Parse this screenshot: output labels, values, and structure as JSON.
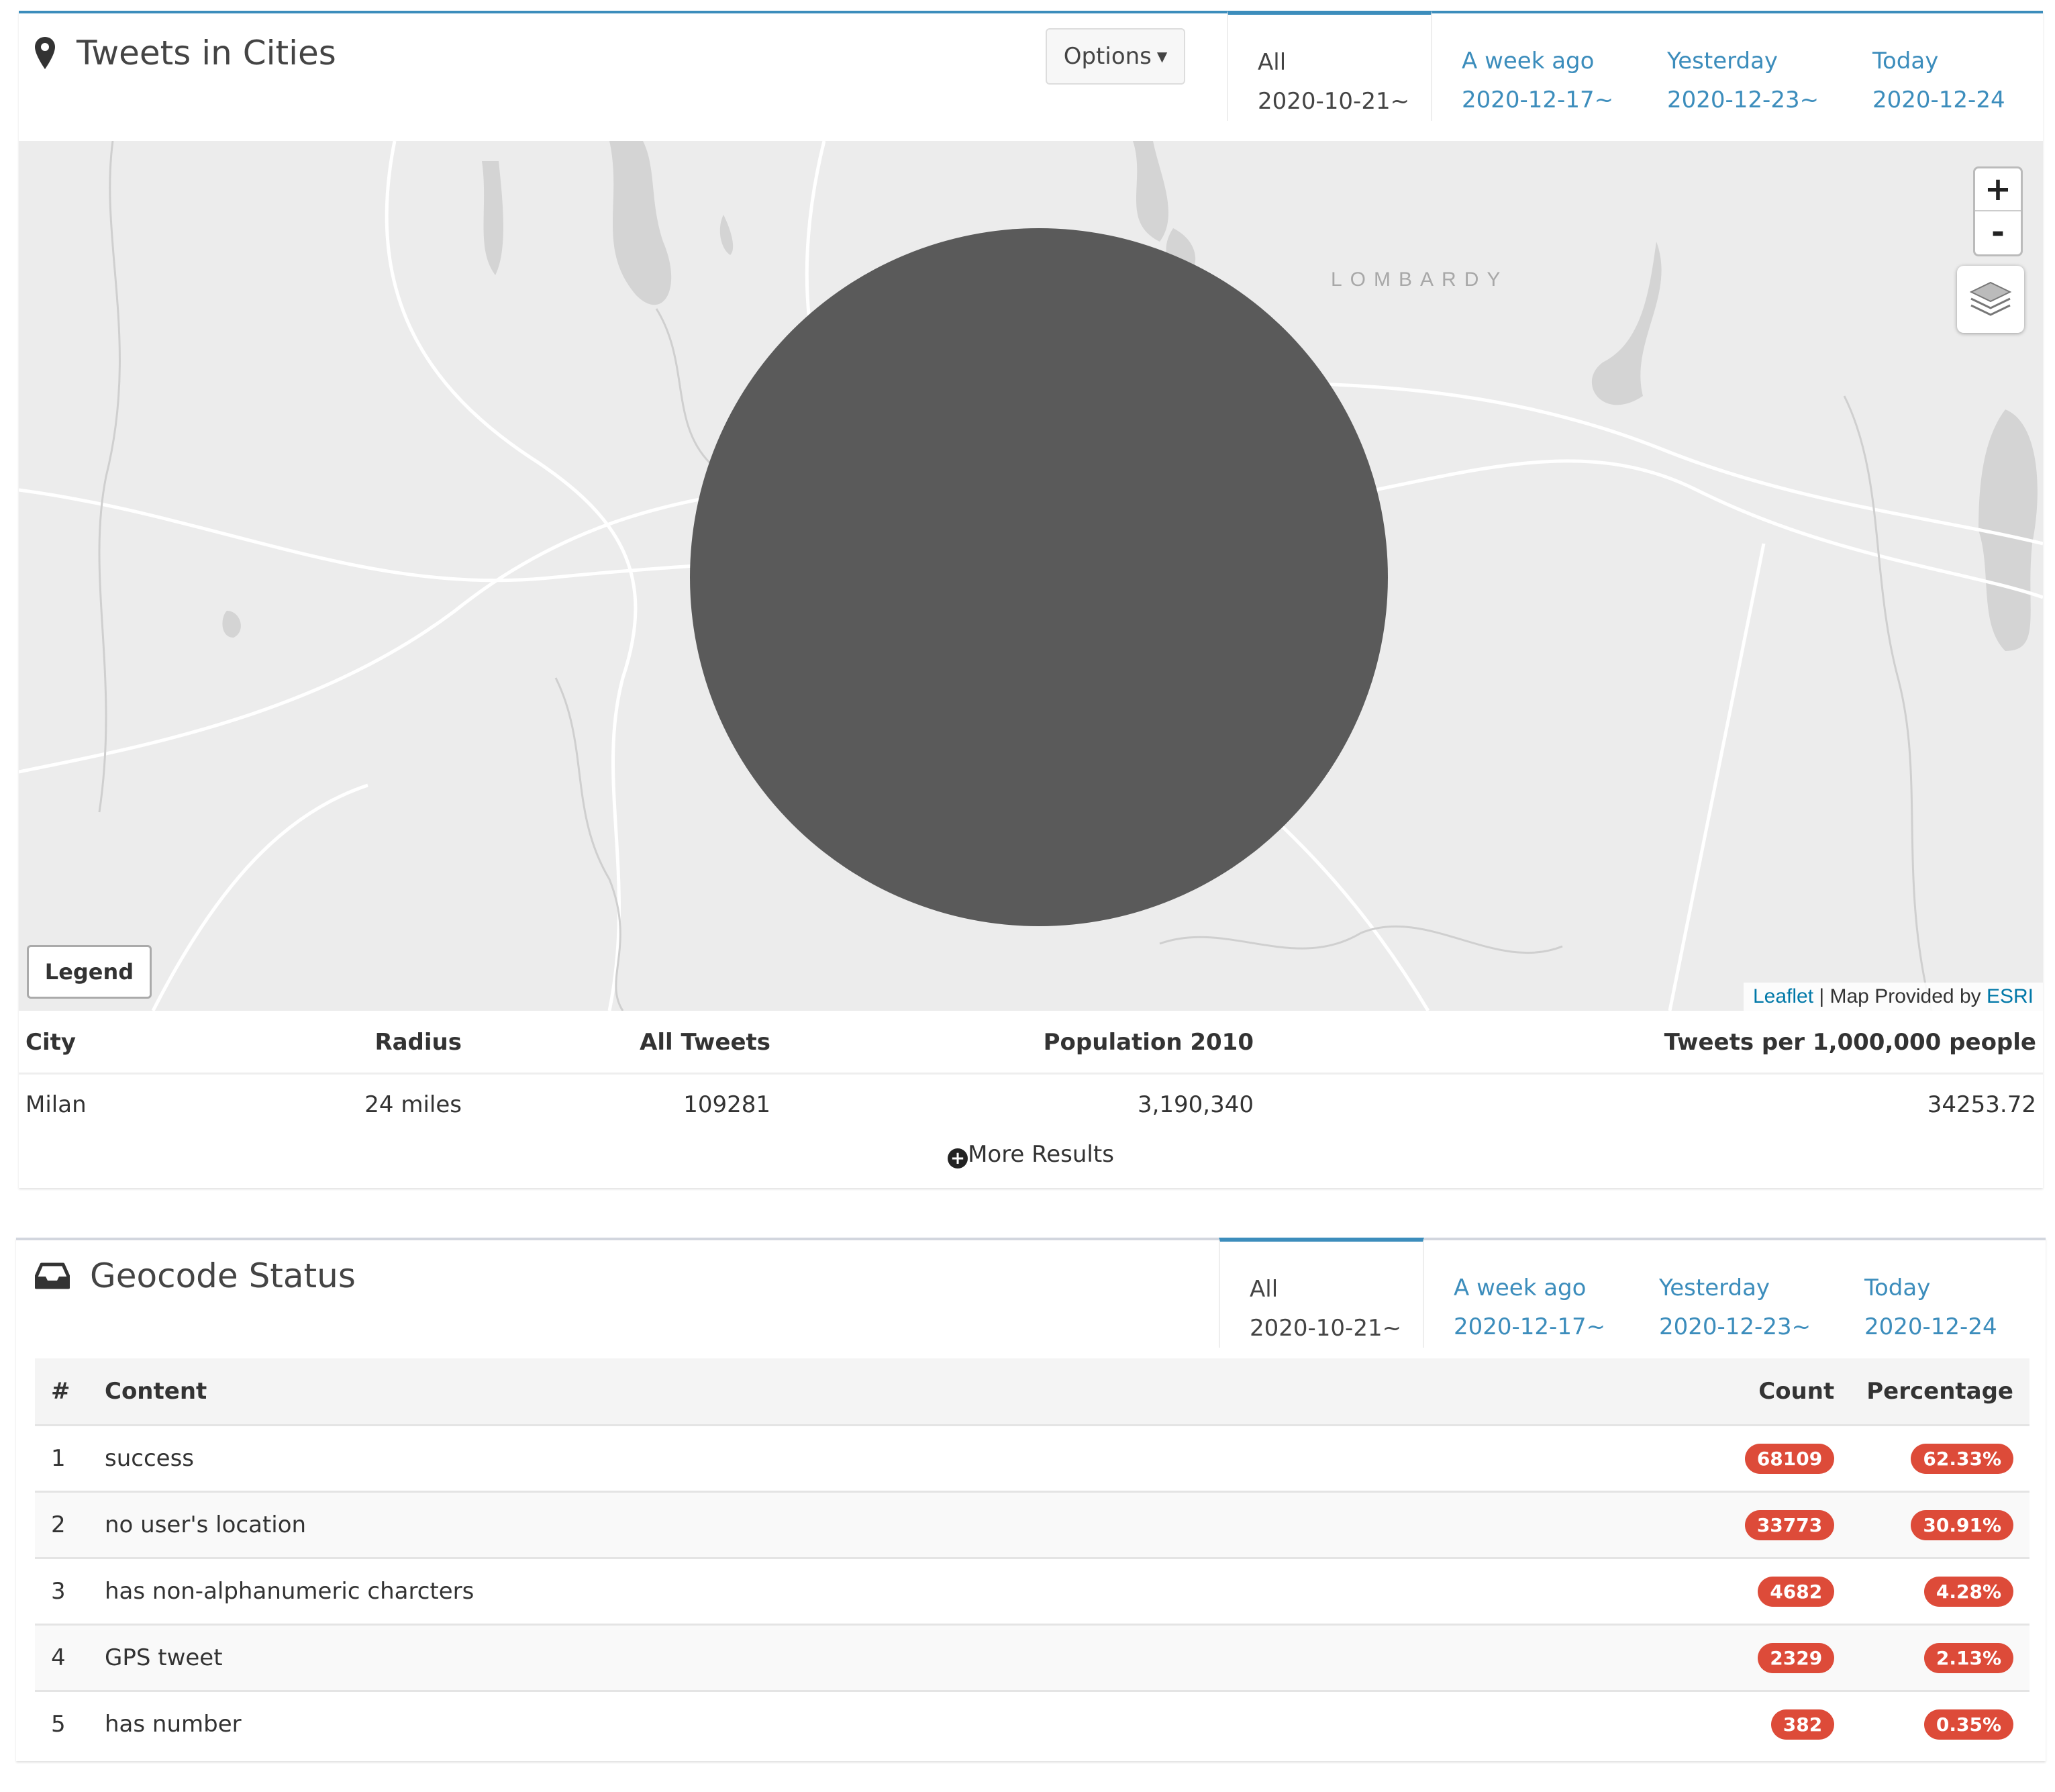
{
  "tweets_panel": {
    "title": "Tweets in Cities",
    "options_label": "Options",
    "tabs": [
      {
        "label": "All",
        "date": "2020-10-21~"
      },
      {
        "label": "A week ago",
        "date": "2020-12-17~"
      },
      {
        "label": "Yesterday",
        "date": "2020-12-23~"
      },
      {
        "label": "Today",
        "date": "2020-12-24"
      }
    ],
    "map": {
      "region_label": "LOMBARDY",
      "zoom_in": "+",
      "zoom_out": "-",
      "legend_label": "Legend",
      "attribution_leaflet": "Leaflet",
      "attribution_sep": " | Map Provided by ",
      "attribution_esri": "ESRI",
      "circle_color": "#5a5a5a"
    },
    "table": {
      "headers": [
        "City",
        "Radius",
        "All Tweets",
        "Population 2010",
        "Tweets per 1,000,000 people"
      ],
      "rows": [
        [
          "Milan",
          "24 miles",
          "109281",
          "3,190,340",
          "34253.72"
        ]
      ]
    },
    "more_results": "More Results"
  },
  "geo_panel": {
    "title": "Geocode Status",
    "tabs": [
      {
        "label": "All",
        "date": "2020-10-21~"
      },
      {
        "label": "A week ago",
        "date": "2020-12-17~"
      },
      {
        "label": "Yesterday",
        "date": "2020-12-23~"
      },
      {
        "label": "Today",
        "date": "2020-12-24"
      }
    ],
    "table": {
      "headers": [
        "#",
        "Content",
        "Count",
        "Percentage"
      ],
      "rows": [
        [
          "1",
          "success",
          "68109",
          "62.33%"
        ],
        [
          "2",
          "no user's location",
          "33773",
          "30.91%"
        ],
        [
          "3",
          "has non-alphanumeric charcters",
          "4682",
          "4.28%"
        ],
        [
          "4",
          "GPS tweet",
          "2329",
          "2.13%"
        ],
        [
          "5",
          "has number",
          "382",
          "0.35%"
        ]
      ]
    }
  },
  "colors": {
    "accent": "#3c8dbc",
    "badge": "#dd4b39"
  }
}
